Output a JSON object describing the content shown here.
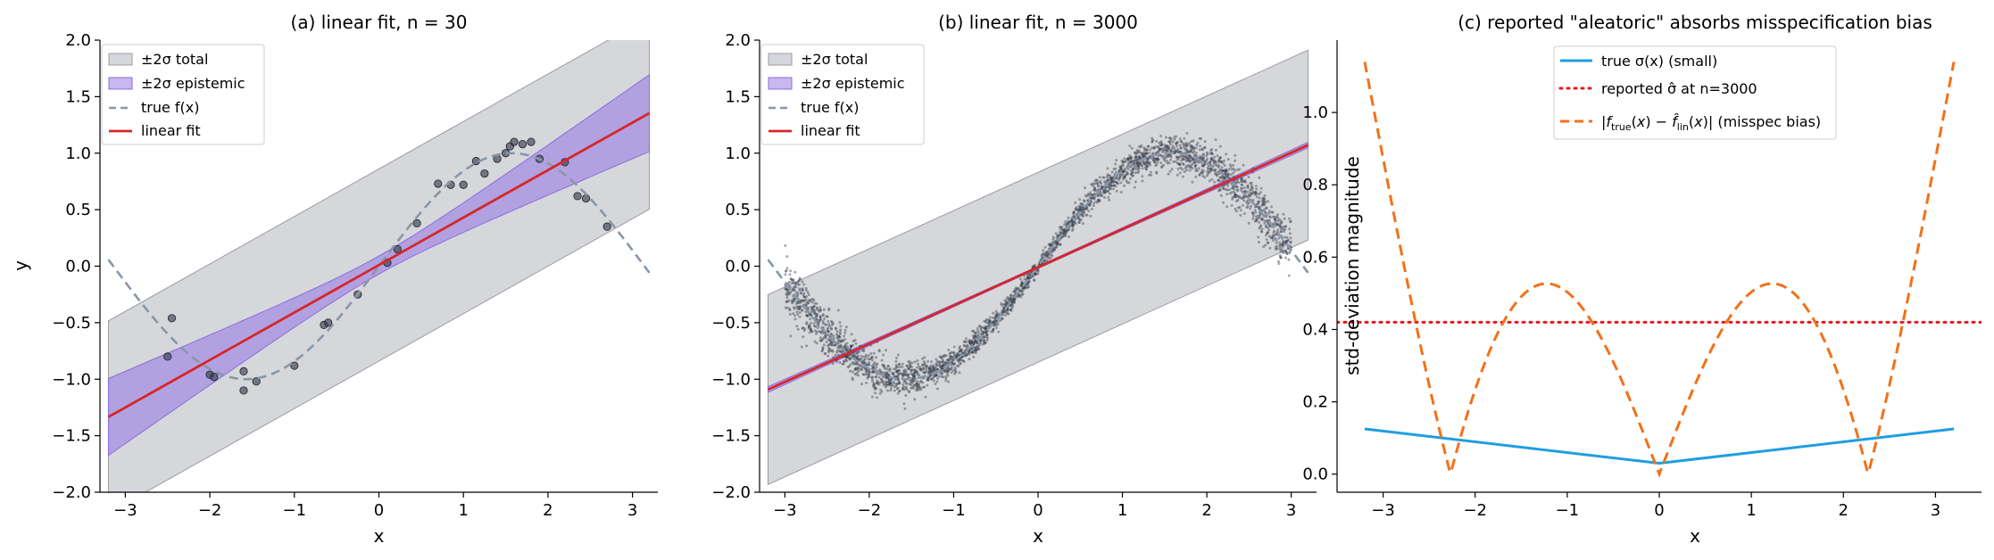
{
  "colors": {
    "total_band": "#b4b6bb",
    "epistemic_band": "#9a7de6",
    "true_f": "#8797a8",
    "linear_fit": "#d62728",
    "points": "#3b4250",
    "true_sigma": "#1f9ee0",
    "reported_sigma": "#e8141f",
    "misspec_bias": "#f27118"
  },
  "chart_data": [
    {
      "type": "line",
      "title": "(a) linear fit, n = 30",
      "xlabel": "x",
      "ylabel": "y",
      "xlim": [
        -3.3,
        3.3
      ],
      "ylim": [
        -2.0,
        2.0
      ],
      "xticks": [
        -3,
        -2,
        -1,
        0,
        1,
        2,
        3
      ],
      "yticks": [
        -2.0,
        -1.5,
        -1.0,
        -0.5,
        0.0,
        0.5,
        1.0,
        1.5,
        2.0
      ],
      "legend_position": "top-left",
      "legend": [
        "±2σ total",
        "±2σ epistemic",
        "true f(x)",
        "linear fit"
      ],
      "linear_fit": {
        "slope": 0.42,
        "intercept": 0.01,
        "x_range": [
          -3.2,
          3.2
        ]
      },
      "total_band_halfwidth": 0.85,
      "epistemic_band_halfwidth": {
        "at_zero": 0.08,
        "at_edge": 0.34
      },
      "true_f": {
        "function": "sin(x)",
        "x_range": [
          -3.2,
          3.2
        ]
      },
      "points": [
        [
          -2.45,
          -0.46
        ],
        [
          -2.5,
          -0.8
        ],
        [
          -2.0,
          -0.96
        ],
        [
          -1.95,
          -0.98
        ],
        [
          -1.6,
          -0.93
        ],
        [
          -1.6,
          -1.1
        ],
        [
          -1.45,
          -1.02
        ],
        [
          -1.0,
          -0.88
        ],
        [
          -0.65,
          -0.52
        ],
        [
          -0.6,
          -0.5
        ],
        [
          -0.25,
          -0.25
        ],
        [
          0.1,
          0.03
        ],
        [
          0.22,
          0.15
        ],
        [
          0.45,
          0.38
        ],
        [
          0.7,
          0.73
        ],
        [
          0.85,
          0.72
        ],
        [
          1.0,
          0.72
        ],
        [
          1.15,
          0.93
        ],
        [
          1.25,
          0.82
        ],
        [
          1.4,
          0.95
        ],
        [
          1.5,
          1.0
        ],
        [
          1.55,
          1.06
        ],
        [
          1.6,
          1.1
        ],
        [
          1.7,
          1.08
        ],
        [
          1.8,
          1.1
        ],
        [
          1.9,
          0.95
        ],
        [
          2.2,
          0.92
        ],
        [
          2.35,
          0.62
        ],
        [
          2.45,
          0.6
        ],
        [
          2.7,
          0.35
        ]
      ]
    },
    {
      "type": "line",
      "title": "(b) linear fit, n = 3000",
      "xlabel": "x",
      "xlim": [
        -3.3,
        3.3
      ],
      "ylim": [
        -2.0,
        2.0
      ],
      "xticks": [
        -3,
        -2,
        -1,
        0,
        1,
        2,
        3
      ],
      "yticks": [
        -2.0,
        -1.5,
        -1.0,
        -0.5,
        0.0,
        0.5,
        1.0,
        1.5,
        2.0
      ],
      "legend_position": "top-left",
      "legend": [
        "±2σ total",
        "±2σ epistemic",
        "true f(x)",
        "linear fit"
      ],
      "linear_fit": {
        "slope": 0.338,
        "intercept": -0.01,
        "x_range": [
          -3.2,
          3.2
        ]
      },
      "total_band_halfwidth": 0.84,
      "epistemic_band_halfwidth": {
        "at_zero": 0.01,
        "at_edge": 0.025
      },
      "true_f": {
        "function": "sin(x)",
        "x_range": [
          -3.2,
          3.2
        ]
      },
      "scatter": {
        "n": 3000,
        "x_range": [
          -3.0,
          3.0
        ],
        "noise_sd_min": 0.03,
        "noise_sd_max": 0.12
      }
    },
    {
      "type": "line",
      "title": "(c) reported \"aleatoric\" absorbs misspecification bias",
      "xlabel": "x",
      "ylabel": "std-deviation magnitude",
      "xlim": [
        -3.5,
        3.5
      ],
      "ylim": [
        -0.05,
        1.2
      ],
      "xticks": [
        -3,
        -2,
        -1,
        0,
        1,
        2,
        3
      ],
      "yticks": [
        0.0,
        0.2,
        0.4,
        0.6,
        0.8,
        1.0
      ],
      "legend_position": "top-center",
      "legend": [
        "true σ(x) (small)",
        "reported σ̂ at n=3000",
        "(misspec bias)"
      ],
      "legend_math": {
        "f_true": "f",
        "sub_true": "true",
        "f_hat": "f̂",
        "sub_lin": "lin"
      },
      "series": [
        {
          "name": "true σ(x) (small)",
          "x": [
            -3.2,
            0,
            3.2
          ],
          "values": [
            0.125,
            0.03,
            0.125
          ]
        },
        {
          "name": "reported σ̂ at n=3000",
          "constant": 0.42
        },
        {
          "name": "misspec bias",
          "function": "abs(sin(x) - 0.338*x)",
          "x_range": [
            -3.2,
            3.2
          ]
        }
      ]
    }
  ]
}
